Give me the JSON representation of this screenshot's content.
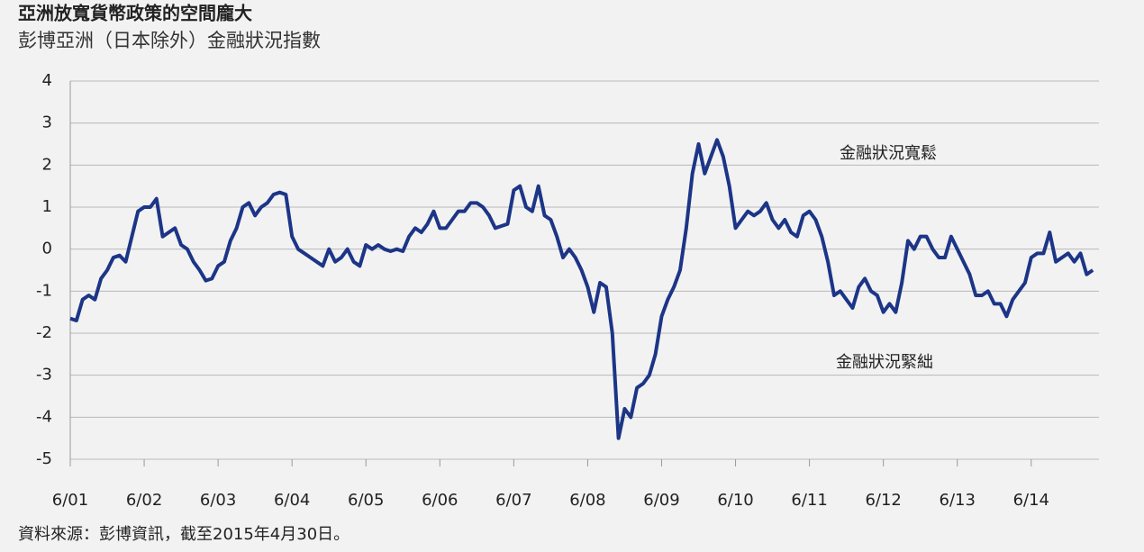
{
  "chart_data": {
    "type": "line",
    "title": "亞洲放寬貨幣政策的空間龐大",
    "subtitle": "彭博亞洲（日本除外）金融狀況指數",
    "source": "資料來源：彭博資訊，截至2015年4月30日。",
    "annotations": [
      "金融狀況寬鬆",
      "金融狀況緊絀"
    ],
    "x": [
      "2001-06",
      "2001-07",
      "2001-08",
      "2001-09",
      "2001-10",
      "2001-11",
      "2001-12",
      "2002-01",
      "2002-02",
      "2002-03",
      "2002-04",
      "2002-05",
      "2002-06",
      "2002-07",
      "2002-08",
      "2002-09",
      "2002-10",
      "2002-11",
      "2002-12",
      "2003-01",
      "2003-02",
      "2003-03",
      "2003-04",
      "2003-05",
      "2003-06",
      "2003-07",
      "2003-08",
      "2003-09",
      "2003-10",
      "2003-11",
      "2003-12",
      "2004-01",
      "2004-02",
      "2004-03",
      "2004-04",
      "2004-05",
      "2004-06",
      "2004-07",
      "2004-08",
      "2004-09",
      "2004-10",
      "2004-11",
      "2004-12",
      "2005-01",
      "2005-02",
      "2005-03",
      "2005-04",
      "2005-05",
      "2005-06",
      "2005-07",
      "2005-08",
      "2005-09",
      "2005-10",
      "2005-11",
      "2005-12",
      "2006-01",
      "2006-02",
      "2006-03",
      "2006-04",
      "2006-05",
      "2006-06",
      "2006-07",
      "2006-08",
      "2006-09",
      "2006-10",
      "2006-11",
      "2006-12",
      "2007-01",
      "2007-02",
      "2007-03",
      "2007-04",
      "2007-05",
      "2007-06",
      "2007-07",
      "2007-08",
      "2007-09",
      "2007-10",
      "2007-11",
      "2007-12",
      "2008-01",
      "2008-02",
      "2008-03",
      "2008-04",
      "2008-05",
      "2008-06",
      "2008-07",
      "2008-08",
      "2008-09",
      "2008-10",
      "2008-11",
      "2008-12",
      "2009-01",
      "2009-02",
      "2009-03",
      "2009-04",
      "2009-05",
      "2009-06",
      "2009-07",
      "2009-08",
      "2009-09",
      "2009-10",
      "2009-11",
      "2009-12",
      "2010-01",
      "2010-02",
      "2010-03",
      "2010-04",
      "2010-05",
      "2010-06",
      "2010-07",
      "2010-08",
      "2010-09",
      "2010-10",
      "2010-11",
      "2010-12",
      "2011-01",
      "2011-02",
      "2011-03",
      "2011-04",
      "2011-05",
      "2011-06",
      "2011-07",
      "2011-08",
      "2011-09",
      "2011-10",
      "2011-11",
      "2011-12",
      "2012-01",
      "2012-02",
      "2012-03",
      "2012-04",
      "2012-05",
      "2012-06",
      "2012-07",
      "2012-08",
      "2012-09",
      "2012-10",
      "2012-11",
      "2012-12",
      "2013-01",
      "2013-02",
      "2013-03",
      "2013-04",
      "2013-05",
      "2013-06",
      "2013-07",
      "2013-08",
      "2013-09",
      "2013-10",
      "2013-11",
      "2013-12",
      "2014-01",
      "2014-02",
      "2014-03",
      "2014-04",
      "2014-05",
      "2014-06",
      "2014-07",
      "2014-08",
      "2014-09",
      "2014-10",
      "2014-11",
      "2014-12",
      "2015-01",
      "2015-02",
      "2015-03",
      "2015-04"
    ],
    "series": [
      {
        "color": "#1c3587",
        "values": [
          -1.65,
          -1.7,
          -1.2,
          -1.1,
          -1.2,
          -0.7,
          -0.5,
          -0.2,
          -0.15,
          -0.3,
          0.3,
          0.9,
          1.0,
          1.0,
          1.2,
          0.3,
          0.4,
          0.5,
          0.1,
          0.0,
          -0.3,
          -0.5,
          -0.75,
          -0.7,
          -0.4,
          -0.3,
          0.2,
          0.5,
          1.0,
          1.1,
          0.8,
          1.0,
          1.1,
          1.3,
          1.35,
          1.3,
          0.3,
          0.0,
          -0.1,
          -0.2,
          -0.3,
          -0.4,
          0.0,
          -0.3,
          -0.2,
          0.0,
          -0.3,
          -0.4,
          0.1,
          0.0,
          0.1,
          0.0,
          -0.05,
          0.0,
          -0.05,
          0.3,
          0.5,
          0.4,
          0.6,
          0.9,
          0.5,
          0.5,
          0.7,
          0.9,
          0.9,
          1.1,
          1.1,
          1.0,
          0.8,
          0.5,
          0.55,
          0.6,
          1.4,
          1.5,
          1.0,
          0.9,
          1.5,
          0.8,
          0.7,
          0.3,
          -0.2,
          0.0,
          -0.2,
          -0.5,
          -0.9,
          -1.5,
          -0.8,
          -0.9,
          -2.0,
          -4.5,
          -3.8,
          -4.0,
          -3.3,
          -3.2,
          -3.0,
          -2.5,
          -1.6,
          -1.2,
          -0.9,
          -0.5,
          0.5,
          1.8,
          2.5,
          1.8,
          2.2,
          2.6,
          2.2,
          1.5,
          0.5,
          0.7,
          0.9,
          0.8,
          0.9,
          1.1,
          0.7,
          0.5,
          0.7,
          0.4,
          0.3,
          0.8,
          0.9,
          0.7,
          0.3,
          -0.3,
          -1.1,
          -1.0,
          -1.2,
          -1.4,
          -0.9,
          -0.7,
          -1.0,
          -1.1,
          -1.5,
          -1.3,
          -1.5,
          -0.8,
          0.2,
          0.0,
          0.3,
          0.3,
          0.0,
          -0.2,
          -0.2,
          0.3,
          0.0,
          -0.3,
          -0.6,
          -1.1,
          -1.1,
          -1.0,
          -1.3,
          -1.3,
          -1.6,
          -1.2,
          -1.0,
          -0.8,
          -0.2,
          -0.1,
          -0.1,
          0.4,
          -0.3,
          -0.2,
          -0.1,
          -0.3,
          -0.1,
          -0.6,
          -0.5
        ]
      }
    ],
    "xlim": [
      "2001-06",
      "2015-05"
    ],
    "xticks": [
      {
        "value": "2001-06",
        "label": "6/01"
      },
      {
        "value": "2002-06",
        "label": "6/02"
      },
      {
        "value": "2003-06",
        "label": "6/03"
      },
      {
        "value": "2004-06",
        "label": "6/04"
      },
      {
        "value": "2005-06",
        "label": "6/05"
      },
      {
        "value": "2006-06",
        "label": "6/06"
      },
      {
        "value": "2007-06",
        "label": "6/07"
      },
      {
        "value": "2008-06",
        "label": "6/08"
      },
      {
        "value": "2009-06",
        "label": "6/09"
      },
      {
        "value": "2010-06",
        "label": "6/10"
      },
      {
        "value": "2011-06",
        "label": "6/11"
      },
      {
        "value": "2012-06",
        "label": "6/12"
      },
      {
        "value": "2013-06",
        "label": "6/13"
      },
      {
        "value": "2014-06",
        "label": "6/14"
      }
    ],
    "ylim": [
      -5,
      4
    ],
    "yticks": [
      -5,
      -4,
      -3,
      -2,
      -1,
      0,
      1,
      2,
      3,
      4
    ],
    "grid": true
  }
}
